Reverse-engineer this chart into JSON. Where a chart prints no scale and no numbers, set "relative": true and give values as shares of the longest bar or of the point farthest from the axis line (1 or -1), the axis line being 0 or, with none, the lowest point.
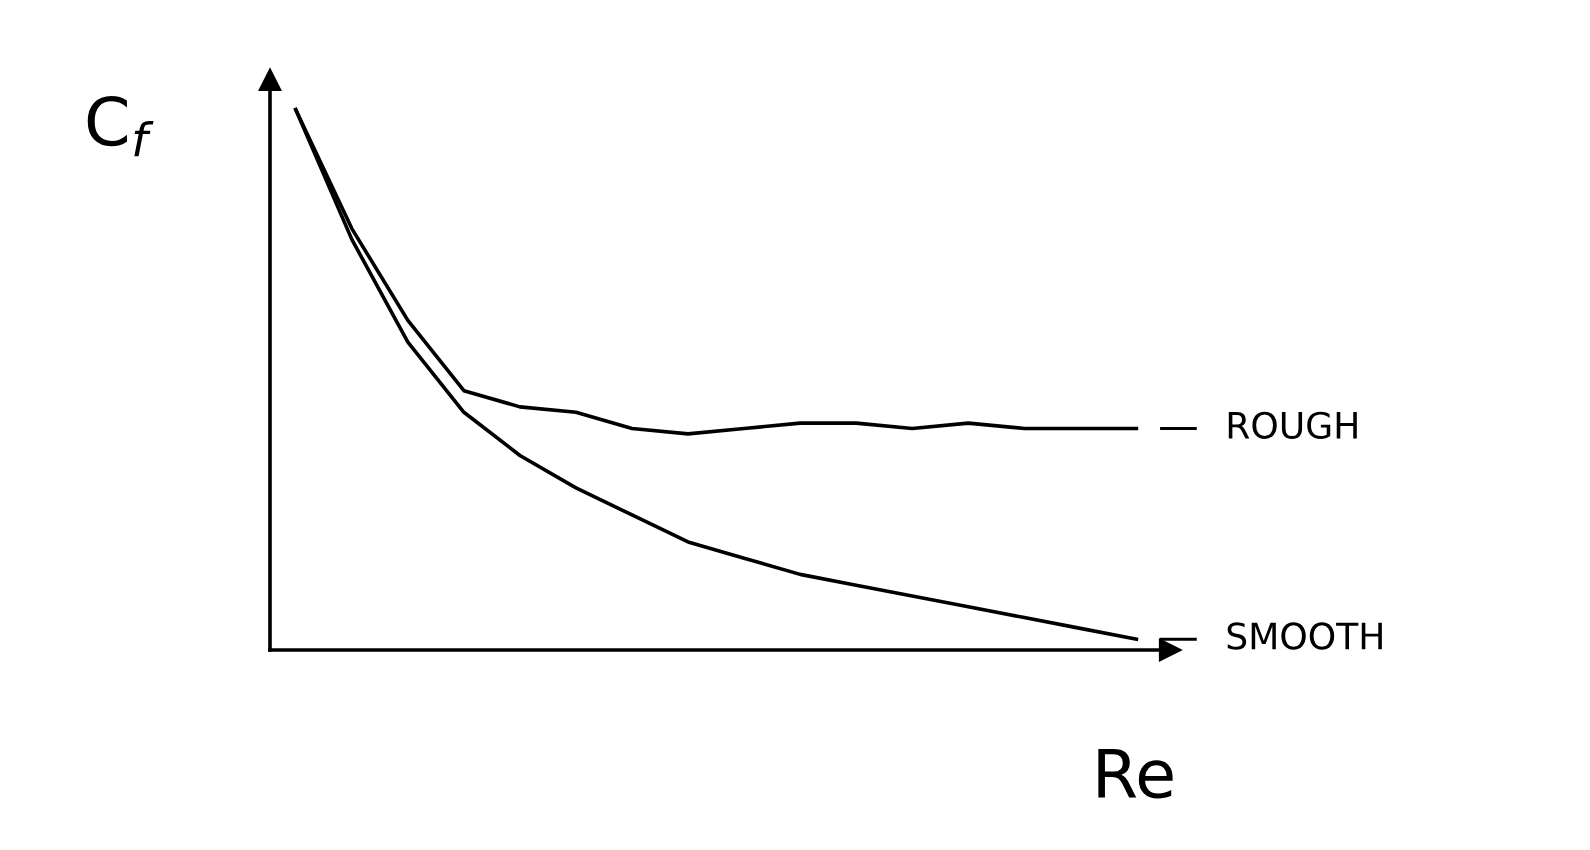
{
  "chart_data": {
    "type": "line",
    "relative": true,
    "xlabel": "Re",
    "ylabel": "C$_{f}$",
    "categories": [
      null,
      null,
      null,
      null,
      null,
      null,
      null,
      null,
      null,
      null,
      null,
      null,
      null,
      null,
      null,
      null
    ],
    "series": [
      {
        "name": "ROUGH",
        "color": "#000000",
        "values": [
          1,
          0.78,
          0.61,
          0.48,
          0.45,
          0.44,
          0.41,
          0.4,
          0.41,
          0.42,
          0.42,
          0.41,
          0.42,
          0.41,
          0.41,
          0.41
        ]
      },
      {
        "name": "SMOOTH",
        "color": "#000000",
        "values": [
          1,
          0.76,
          0.57,
          0.44,
          0.36,
          0.3,
          0.25,
          0.2,
          0.17,
          0.14,
          0.12,
          0.1,
          0.08,
          0.06,
          0.04,
          0.02
        ]
      }
    ],
    "legend": "right",
    "grid": false,
    "marker": "none",
    "line_style": "solid"
  }
}
